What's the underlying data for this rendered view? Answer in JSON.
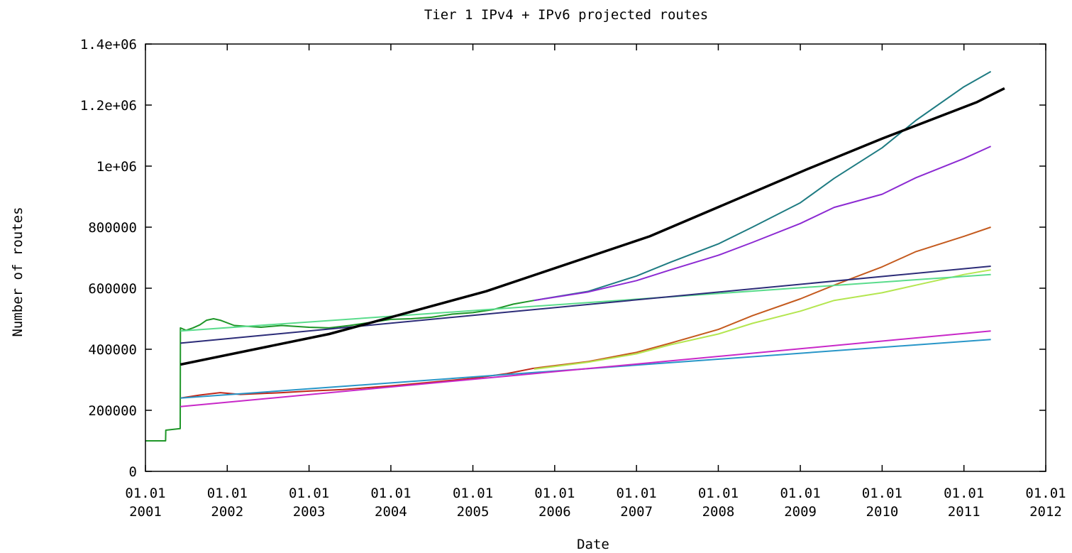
{
  "chart_data": {
    "type": "line",
    "title": "Tier 1 IPv4 + IPv6 projected routes",
    "xlabel": "Date",
    "ylabel": "Number of routes",
    "xlim": [
      "2001-01-01",
      "2012-01-01"
    ],
    "ylim": [
      0,
      1400000
    ],
    "x_ticks": [
      {
        "date": "2001-01-01",
        "line1": "01.01",
        "line2": "2001"
      },
      {
        "date": "2002-01-01",
        "line1": "01.01",
        "line2": "2002"
      },
      {
        "date": "2003-01-01",
        "line1": "01.01",
        "line2": "2003"
      },
      {
        "date": "2004-01-01",
        "line1": "01.01",
        "line2": "2004"
      },
      {
        "date": "2005-01-01",
        "line1": "01.01",
        "line2": "2005"
      },
      {
        "date": "2006-01-01",
        "line1": "01.01",
        "line2": "2006"
      },
      {
        "date": "2007-01-01",
        "line1": "01.01",
        "line2": "2007"
      },
      {
        "date": "2008-01-01",
        "line1": "01.01",
        "line2": "2008"
      },
      {
        "date": "2009-01-01",
        "line1": "01.01",
        "line2": "2009"
      },
      {
        "date": "2010-01-01",
        "line1": "01.01",
        "line2": "2010"
      },
      {
        "date": "2011-01-01",
        "line1": "01.01",
        "line2": "2011"
      },
      {
        "date": "2012-01-01",
        "line1": "01.01",
        "line2": "2012"
      }
    ],
    "y_ticks": [
      {
        "value": 0,
        "label": "0"
      },
      {
        "value": 200000,
        "label": "200000"
      },
      {
        "value": 400000,
        "label": "400000"
      },
      {
        "value": 600000,
        "label": "600000"
      },
      {
        "value": 800000,
        "label": "800000"
      },
      {
        "value": 1000000,
        "label": "1e+06"
      },
      {
        "value": 1200000,
        "label": "1.2e+06"
      },
      {
        "value": 1400000,
        "label": "1.4e+06"
      }
    ],
    "grid": false,
    "legend": "none",
    "series": [
      {
        "color": "#1e9628",
        "x": [
          "2001-01-01",
          "2001-03-15",
          "2001-03-16",
          "2001-04-01",
          "2001-04-02",
          "2001-06-05",
          "2001-06-06",
          "2001-07-01",
          "2001-08-01",
          "2001-09-01",
          "2001-10-01",
          "2001-11-01",
          "2001-12-01",
          "2002-02-01",
          "2002-06-01",
          "2002-09-01",
          "2003-01-01",
          "2003-04-01",
          "2003-07-01",
          "2003-10-01",
          "2004-01-01",
          "2004-04-01",
          "2004-07-01",
          "2004-10-01",
          "2005-01-01",
          "2005-04-01",
          "2005-07-01",
          "2005-10-01"
        ],
        "y": [
          100000,
          100000,
          100000,
          100000,
          135000,
          140000,
          470000,
          462000,
          470000,
          480000,
          495000,
          500000,
          495000,
          478000,
          472000,
          478000,
          472000,
          470000,
          478000,
          488000,
          498000,
          500000,
          505000,
          515000,
          520000,
          530000,
          548000,
          560000
        ]
      },
      {
        "color": "#c0281a",
        "x": [
          "2001-06-06",
          "2001-09-01",
          "2001-12-01",
          "2002-03-01",
          "2002-06-01",
          "2002-09-01",
          "2003-01-01",
          "2003-06-01",
          "2004-01-01",
          "2004-06-01",
          "2005-01-01",
          "2005-06-01",
          "2005-10-01"
        ],
        "y": [
          240000,
          250000,
          258000,
          252000,
          255000,
          258000,
          263000,
          268000,
          280000,
          290000,
          305000,
          320000,
          338000
        ]
      },
      {
        "color": "#1e7b82",
        "x": [
          "2005-10-01",
          "2006-06-01",
          "2007-01-01",
          "2007-06-01",
          "2008-01-01",
          "2008-06-01",
          "2009-01-01",
          "2009-06-01",
          "2010-01-01",
          "2010-06-01",
          "2011-01-01",
          "2011-05-01"
        ],
        "y": [
          560000,
          590000,
          640000,
          685000,
          745000,
          800000,
          880000,
          960000,
          1060000,
          1150000,
          1260000,
          1310000
        ]
      },
      {
        "color": "#8c2ad2",
        "x": [
          "2005-10-01",
          "2006-06-01",
          "2007-01-01",
          "2007-06-01",
          "2008-01-01",
          "2008-06-01",
          "2009-01-01",
          "2009-06-01",
          "2010-01-01",
          "2010-06-01",
          "2011-01-01",
          "2011-05-01"
        ],
        "y": [
          560000,
          588000,
          625000,
          660000,
          708000,
          750000,
          812000,
          865000,
          908000,
          962000,
          1025000,
          1065000
        ]
      },
      {
        "color": "#c45a1e",
        "x": [
          "2005-10-01",
          "2006-06-01",
          "2007-01-01",
          "2007-06-01",
          "2008-01-01",
          "2008-06-01",
          "2009-01-01",
          "2009-06-01",
          "2010-01-01",
          "2010-06-01",
          "2011-01-01",
          "2011-05-01"
        ],
        "y": [
          338000,
          360000,
          390000,
          420000,
          465000,
          510000,
          565000,
          610000,
          670000,
          720000,
          770000,
          800000
        ]
      },
      {
        "color": "#b4e650",
        "x": [
          "2005-10-01",
          "2006-06-01",
          "2007-01-01",
          "2007-06-01",
          "2008-01-01",
          "2008-06-01",
          "2009-01-01",
          "2009-06-01",
          "2010-01-01",
          "2010-06-01",
          "2011-01-01",
          "2011-05-01"
        ],
        "y": [
          335000,
          358000,
          385000,
          415000,
          450000,
          485000,
          525000,
          560000,
          585000,
          610000,
          645000,
          660000
        ]
      },
      {
        "color": "#5adc8c",
        "x": [
          "2001-06-06",
          "2011-05-01"
        ],
        "y": [
          460000,
          645000
        ]
      },
      {
        "color": "#2c2c78",
        "x": [
          "2001-06-06",
          "2011-05-01"
        ],
        "y": [
          420000,
          672000
        ]
      },
      {
        "color": "#2896c8",
        "x": [
          "2001-06-06",
          "2011-05-01"
        ],
        "y": [
          240000,
          432000
        ]
      },
      {
        "color": "#c828c8",
        "x": [
          "2001-06-06",
          "2011-05-01"
        ],
        "y": [
          212000,
          460000
        ]
      },
      {
        "color": "#000000",
        "x": [
          "2001-06-06",
          "2003-04-01",
          "2005-03-01",
          "2007-03-01",
          "2009-02-01",
          "2010-01-01",
          "2011-03-01",
          "2011-07-01"
        ],
        "y": [
          350000,
          450000,
          590000,
          770000,
          990000,
          1090000,
          1210000,
          1255000
        ]
      }
    ]
  }
}
